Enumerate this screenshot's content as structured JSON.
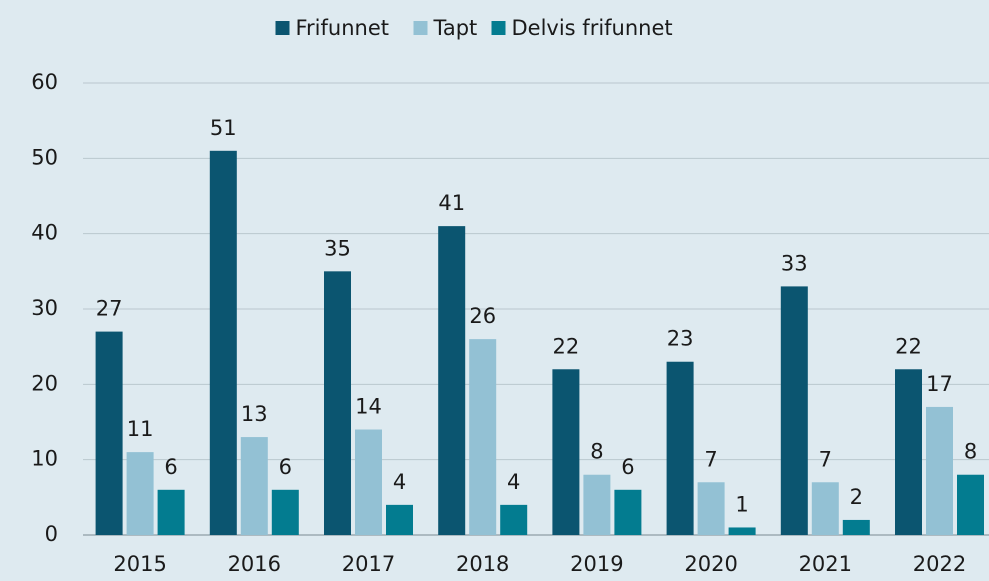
{
  "chart_data": {
    "type": "bar",
    "categories": [
      "2015",
      "2016",
      "2017",
      "2018",
      "2019",
      "2020",
      "2021",
      "2022"
    ],
    "series": [
      {
        "name": "Frifunnet",
        "color": "#0b5570",
        "values": [
          27,
          51,
          35,
          41,
          22,
          23,
          33,
          22
        ]
      },
      {
        "name": "Tapt",
        "color": "#93c1d4",
        "values": [
          11,
          13,
          14,
          26,
          8,
          7,
          7,
          17
        ]
      },
      {
        "name": "Delvis frifunnet",
        "color": "#037c90",
        "values": [
          6,
          6,
          4,
          4,
          6,
          1,
          2,
          8
        ]
      }
    ],
    "ylim": [
      0,
      60
    ],
    "yticks": [
      0,
      10,
      20,
      30,
      40,
      50,
      60
    ],
    "grid": true,
    "legend": "top"
  }
}
